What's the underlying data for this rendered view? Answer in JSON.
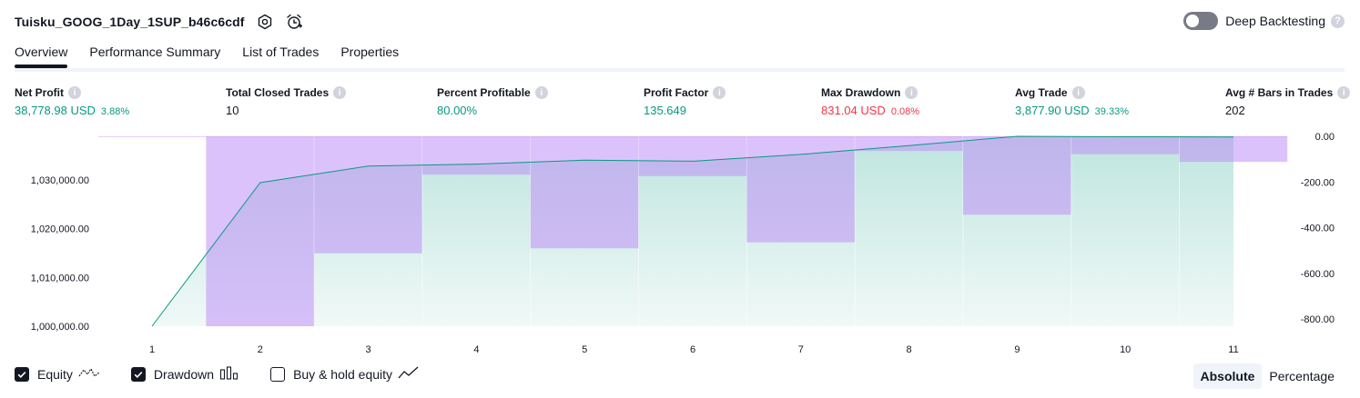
{
  "header": {
    "strategy_name": "Tuisku_GOOG_1Day_1SUP_b46c6cdf",
    "deep_backtesting_label": "Deep Backtesting",
    "help_glyph": "?"
  },
  "tabs": [
    {
      "label": "Overview",
      "active": true
    },
    {
      "label": "Performance Summary",
      "active": false
    },
    {
      "label": "List of Trades",
      "active": false
    },
    {
      "label": "Properties",
      "active": false
    }
  ],
  "metrics": [
    {
      "label": "Net Profit",
      "value": "38,778.98 USD",
      "pct": "3.88%",
      "color": "#089981"
    },
    {
      "label": "Total Closed Trades",
      "value": "10",
      "pct": "",
      "color": "#131722"
    },
    {
      "label": "Percent Profitable",
      "value": "80.00%",
      "pct": "",
      "color": "#089981"
    },
    {
      "label": "Profit Factor",
      "value": "135.649",
      "pct": "",
      "color": "#089981"
    },
    {
      "label": "Max Drawdown",
      "value": "831.04 USD",
      "pct": "0.08%",
      "color": "#f23645"
    },
    {
      "label": "Avg Trade",
      "value": "3,877.90 USD",
      "pct": "39.33%",
      "color": "#089981"
    },
    {
      "label": "Avg # Bars in Trades",
      "value": "202",
      "pct": "",
      "color": "#131722"
    }
  ],
  "chart_data": {
    "type": "line",
    "x": [
      1,
      2,
      3,
      4,
      5,
      6,
      7,
      8,
      9,
      10,
      11
    ],
    "series": [
      {
        "values": [
          1000000,
          1029400,
          1032800,
          1033200,
          1034000,
          1033800,
          1035200,
          1037000,
          1038900,
          1038800,
          1038778.98
        ],
        "color": "#089981",
        "axis": "left"
      },
      {
        "values": [
          -1,
          -831.04,
          -512,
          -168,
          -490,
          -174,
          -464,
          -64,
          -343,
          -78,
          -112
        ],
        "color": "#9598f0",
        "axis": "right",
        "style": "bar"
      }
    ],
    "left_ticks": [
      "1,000,000.00",
      "1,010,000.00",
      "1,020,000.00",
      "1,030,000.00"
    ],
    "left_tick_values": [
      1000000,
      1010000,
      1020000,
      1030000
    ],
    "right_ticks": [
      "0.00",
      "-200.00",
      "-400.00",
      "-600.00",
      "-800.00"
    ],
    "right_tick_values": [
      0,
      -200,
      -400,
      -600,
      -800
    ],
    "ylim_left": [
      1000000,
      1038900
    ],
    "ylim_right": [
      -831.04,
      0
    ],
    "x_tick_labels": [
      "1",
      "2",
      "3",
      "4",
      "5",
      "6",
      "7",
      "8",
      "9",
      "10",
      "11"
    ],
    "grid": false
  },
  "footer": {
    "legend": [
      {
        "label": "Equity",
        "checked": true
      },
      {
        "label": "Drawdown",
        "checked": true
      },
      {
        "label": "Buy & hold equity",
        "checked": false
      }
    ],
    "scale_options": [
      {
        "label": "Absolute",
        "active": true
      },
      {
        "label": "Percentage",
        "active": false
      }
    ]
  }
}
